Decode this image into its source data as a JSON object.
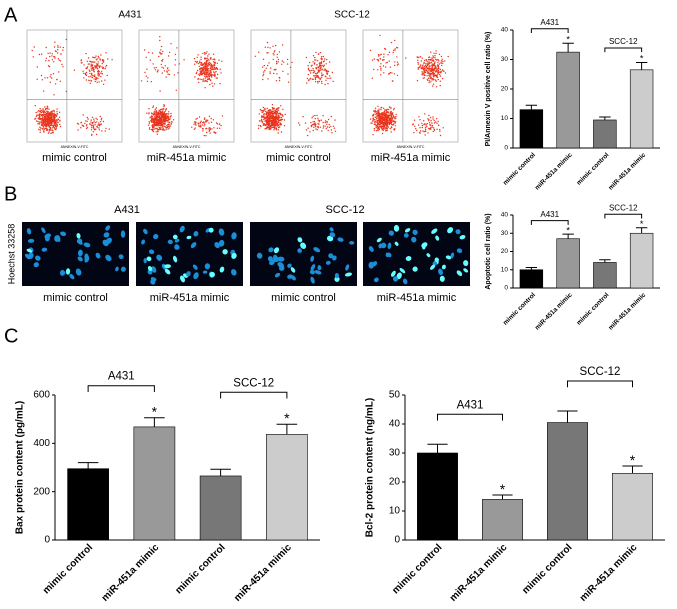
{
  "panel_labels": [
    "A",
    "B",
    "C"
  ],
  "flow": {
    "groups": [
      "A431",
      "SCC-12"
    ],
    "captions": [
      "mimic control",
      "miR-451a mimic",
      "mimic control",
      "miR-451a mimic"
    ],
    "axis_label": "ANNEXIN-V-FITC"
  },
  "staining": {
    "groups": [
      "A431",
      "SCC-12"
    ],
    "captions": [
      "mimic control",
      "miR-451a mimic",
      "mimic control",
      "miR-451a mimic"
    ],
    "stain_label": "Hoechst 33258"
  },
  "chart_data": [
    {
      "type": "bar",
      "ylabel": "PI/Annexin V positive cell ratio (%)",
      "categories": [
        "mimic control",
        "miR-451a mimic",
        "mimic control",
        "miR-451a mimic"
      ],
      "values": [
        13,
        32.5,
        9.5,
        26.5
      ],
      "errors": [
        1.5,
        3,
        1,
        2.5
      ],
      "colors": [
        "#000000",
        "#999999",
        "#777777",
        "#cccccc"
      ],
      "ylim": [
        0,
        40
      ],
      "yticks": [
        0,
        10,
        20,
        30,
        40
      ],
      "brackets": [
        "A431",
        "SCC-12"
      ],
      "stars": [
        null,
        "*",
        null,
        "*"
      ]
    },
    {
      "type": "bar",
      "ylabel": "Apoptotic cell ratio (%)",
      "categories": [
        "mimic control",
        "miR-451a mimic",
        "mimic control",
        "miR-451a mimic"
      ],
      "values": [
        10,
        27,
        14,
        30
      ],
      "errors": [
        1.2,
        2.5,
        1.5,
        3
      ],
      "colors": [
        "#000000",
        "#999999",
        "#777777",
        "#cccccc"
      ],
      "ylim": [
        0,
        40
      ],
      "yticks": [
        0,
        10,
        20,
        30,
        40
      ],
      "brackets": [
        "A431",
        "SCC-12"
      ],
      "stars": [
        null,
        "*",
        null,
        "*"
      ]
    },
    {
      "type": "bar",
      "ylabel": "Bax protein content (pg/mL)",
      "categories": [
        "mimic control",
        "miR-451a mimic",
        "mimic control",
        "miR-451a mimic"
      ],
      "values": [
        295,
        468,
        265,
        437
      ],
      "errors": [
        25,
        38,
        28,
        42
      ],
      "colors": [
        "#000000",
        "#999999",
        "#777777",
        "#cccccc"
      ],
      "ylim": [
        0,
        600
      ],
      "yticks": [
        0,
        200,
        400,
        600
      ],
      "brackets": [
        "A431",
        "SCC-12"
      ],
      "stars": [
        null,
        "*",
        null,
        "*"
      ]
    },
    {
      "type": "bar",
      "ylabel": "Bcl-2 protein content (ng/mL)",
      "categories": [
        "mimic control",
        "miR-451a mimic",
        "mimic control",
        "miR-451a mimic"
      ],
      "values": [
        30,
        14,
        40.5,
        23
      ],
      "errors": [
        3,
        1.5,
        4,
        2.5
      ],
      "colors": [
        "#000000",
        "#999999",
        "#777777",
        "#cccccc"
      ],
      "ylim": [
        0,
        50
      ],
      "yticks": [
        0,
        10,
        20,
        30,
        40,
        50
      ],
      "brackets": [
        "A431",
        "SCC-12"
      ],
      "stars": [
        null,
        "*",
        null,
        "*"
      ]
    }
  ]
}
